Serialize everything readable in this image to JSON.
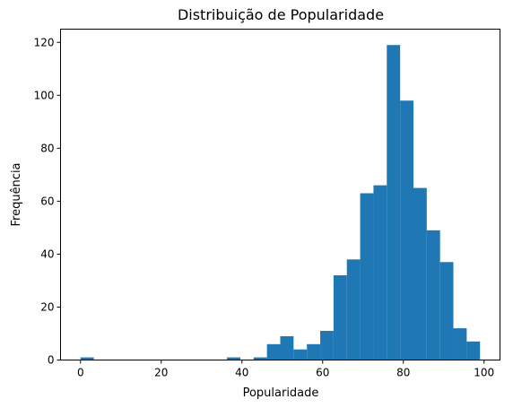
{
  "chart_data": {
    "type": "bar",
    "title": "Distribuição de Popularidade",
    "xlabel": "Popularidade",
    "ylabel": "Frequência",
    "xlim": [
      -4.95,
      103.95
    ],
    "ylim": [
      0,
      125
    ],
    "x_ticks": [
      0,
      20,
      40,
      60,
      80,
      100
    ],
    "y_ticks": [
      0,
      20,
      40,
      60,
      80,
      100,
      120
    ],
    "bar_color": "#1f77b4",
    "bin_width": 3.3,
    "bins": [
      {
        "start": 0.0,
        "count": 1
      },
      {
        "start": 3.3,
        "count": 0
      },
      {
        "start": 6.6,
        "count": 0
      },
      {
        "start": 9.9,
        "count": 0
      },
      {
        "start": 13.2,
        "count": 0
      },
      {
        "start": 16.5,
        "count": 0
      },
      {
        "start": 19.8,
        "count": 0
      },
      {
        "start": 23.1,
        "count": 0
      },
      {
        "start": 26.4,
        "count": 0
      },
      {
        "start": 29.7,
        "count": 0
      },
      {
        "start": 33.0,
        "count": 0
      },
      {
        "start": 36.3,
        "count": 1
      },
      {
        "start": 39.6,
        "count": 0
      },
      {
        "start": 42.9,
        "count": 1
      },
      {
        "start": 46.2,
        "count": 6
      },
      {
        "start": 49.5,
        "count": 9
      },
      {
        "start": 52.8,
        "count": 4
      },
      {
        "start": 56.1,
        "count": 6
      },
      {
        "start": 59.4,
        "count": 11
      },
      {
        "start": 62.7,
        "count": 32
      },
      {
        "start": 66.0,
        "count": 38
      },
      {
        "start": 69.3,
        "count": 63
      },
      {
        "start": 72.6,
        "count": 66
      },
      {
        "start": 75.9,
        "count": 119
      },
      {
        "start": 79.2,
        "count": 98
      },
      {
        "start": 82.5,
        "count": 65
      },
      {
        "start": 85.8,
        "count": 49
      },
      {
        "start": 89.1,
        "count": 37
      },
      {
        "start": 92.4,
        "count": 12
      },
      {
        "start": 95.7,
        "count": 7
      }
    ]
  }
}
